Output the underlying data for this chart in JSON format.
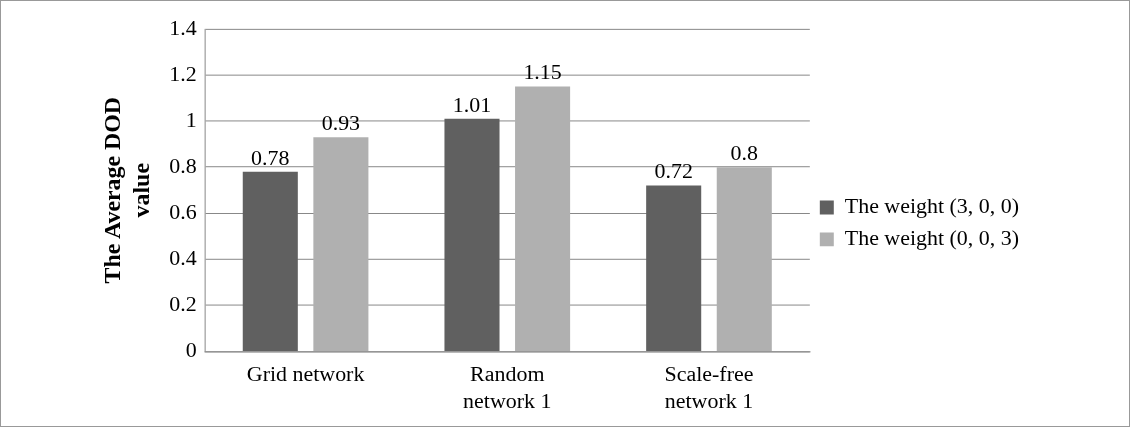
{
  "chart_data": {
    "type": "bar",
    "ylabel": "The Average DOD value",
    "categories": [
      "Grid network",
      "Random network 1",
      "Scale-free network 1"
    ],
    "series": [
      {
        "name": "The weight (3, 0, 0)",
        "color": "#606060",
        "values": [
          0.78,
          1.01,
          0.72
        ]
      },
      {
        "name": "The weight (0, 0, 3)",
        "color": "#b0b0b0",
        "values": [
          0.93,
          1.15,
          0.8
        ]
      }
    ],
    "ylim": [
      0,
      1.4
    ],
    "yticks": [
      0,
      0.2,
      0.4,
      0.6,
      0.8,
      1,
      1.2,
      1.4
    ],
    "grid": "y",
    "legend": "right",
    "data_labels": true
  }
}
